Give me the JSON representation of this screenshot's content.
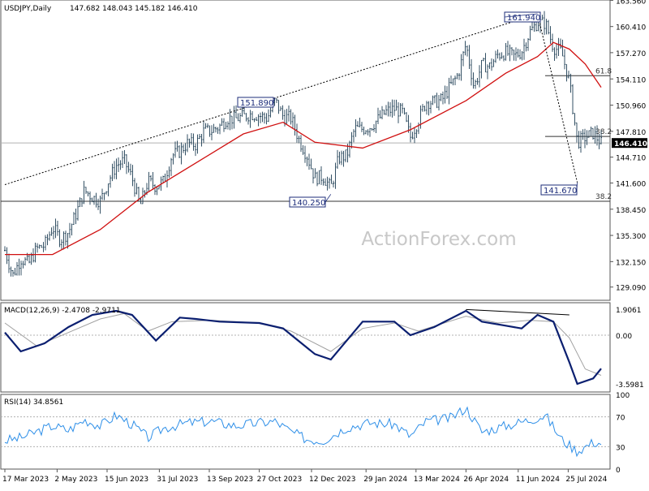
{
  "header": {
    "symbol": "USDJPY,Daily",
    "ohlc": "147.682 148.043 145.182 146.410"
  },
  "watermark": "ActionForex.com",
  "colors": {
    "bars": "#1f3f55",
    "ma": "#d01010",
    "macd": "#0b1f70",
    "macd_signal": "#a0a0a0",
    "rsi": "#2e8fe8",
    "trend": "#000000",
    "grid": "#b0b0b0",
    "price_label_bg": "#ffffff"
  },
  "chart_data": [
    {
      "type": "candlestick",
      "panel": "price",
      "ylim": [
        127.5,
        163.6
      ],
      "y_ticks": [
        "163.560",
        "160.410",
        "157.270",
        "154.110",
        "150.960",
        "147.810",
        "144.710",
        "141.600",
        "138.450",
        "135.300",
        "132.150",
        "129.090"
      ],
      "y_tick_values": [
        163.56,
        160.41,
        157.27,
        154.11,
        150.96,
        147.81,
        144.71,
        141.6,
        138.45,
        135.3,
        132.15,
        129.09
      ],
      "x_ticks": [
        "17 Mar 2023",
        "2 May 2023",
        "15 Jun 2023",
        "31 Jul 2023",
        "13 Sep 2023",
        "27 Oct 2023",
        "12 Dec 2023",
        "29 Jan 2024",
        "13 Mar 2024",
        "26 Apr 2024",
        "11 Jun 2024",
        "25 Jul 2024"
      ],
      "current_price": "146.410",
      "close_path": [
        [
          "17 Mar 2023",
          133.5
        ],
        [
          "24 Mar 2023",
          130.5
        ],
        [
          "31 Mar 2023",
          132.5
        ],
        [
          "7 Apr 2023",
          131.9
        ],
        [
          "14 Apr 2023",
          133.7
        ],
        [
          "21 Apr 2023",
          134.1
        ],
        [
          "28 Apr 2023",
          136.3
        ],
        [
          "5 May 2023",
          134.8
        ],
        [
          "12 May 2023",
          135.7
        ],
        [
          "19 May 2023",
          138.0
        ],
        [
          "26 May 2023",
          140.7
        ],
        [
          "2 Jun 2023",
          139.9
        ],
        [
          "9 Jun 2023",
          139.4
        ],
        [
          "16 Jun 2023",
          141.8
        ],
        [
          "23 Jun 2023",
          143.7
        ],
        [
          "30 Jun 2023",
          144.3
        ],
        [
          "7 Jul 2023",
          142.2
        ],
        [
          "14 Jul 2023",
          138.8
        ],
        [
          "21 Jul 2023",
          141.8
        ],
        [
          "28 Jul 2023",
          141.2
        ],
        [
          "4 Aug 2023",
          141.8
        ],
        [
          "11 Aug 2023",
          144.9
        ],
        [
          "18 Aug 2023",
          145.4
        ],
        [
          "25 Aug 2023",
          146.4
        ],
        [
          "1 Sep 2023",
          146.2
        ],
        [
          "8 Sep 2023",
          147.8
        ],
        [
          "15 Sep 2023",
          147.9
        ],
        [
          "22 Sep 2023",
          148.4
        ],
        [
          "29 Sep 2023",
          149.4
        ],
        [
          "6 Oct 2023",
          149.3
        ],
        [
          "13 Oct 2023",
          149.6
        ],
        [
          "20 Oct 2023",
          149.9
        ],
        [
          "27 Oct 2023",
          149.7
        ],
        [
          "3 Nov 2023",
          149.4
        ],
        [
          "10 Nov 2023",
          151.5
        ],
        [
          "17 Nov 2023",
          149.6
        ],
        [
          "24 Nov 2023",
          149.4
        ],
        [
          "1 Dec 2023",
          146.8
        ],
        [
          "8 Dec 2023",
          144.9
        ],
        [
          "15 Dec 2023",
          142.2
        ],
        [
          "22 Dec 2023",
          142.4
        ],
        [
          "29 Dec 2023",
          141.0
        ],
        [
          "5 Jan 2024",
          144.6
        ],
        [
          "12 Jan 2024",
          144.9
        ],
        [
          "19 Jan 2024",
          148.1
        ],
        [
          "26 Jan 2024",
          148.1
        ],
        [
          "2 Feb 2024",
          148.4
        ],
        [
          "9 Feb 2024",
          149.3
        ],
        [
          "16 Feb 2024",
          150.2
        ],
        [
          "23 Feb 2024",
          150.5
        ],
        [
          "1 Mar 2024",
          150.1
        ],
        [
          "8 Mar 2024",
          147.1
        ],
        [
          "15 Mar 2024",
          149.1
        ],
        [
          "22 Mar 2024",
          151.4
        ],
        [
          "29 Mar 2024",
          151.3
        ],
        [
          "5 Apr 2024",
          151.6
        ],
        [
          "12 Apr 2024",
          153.2
        ],
        [
          "19 Apr 2024",
          154.6
        ],
        [
          "26 Apr 2024",
          158.3
        ],
        [
          "3 May 2024",
          153.1
        ],
        [
          "10 May 2024",
          155.8
        ],
        [
          "17 May 2024",
          155.6
        ],
        [
          "24 May 2024",
          157.0
        ],
        [
          "31 May 2024",
          157.3
        ],
        [
          "7 Jun 2024",
          156.8
        ],
        [
          "14 Jun 2024",
          157.4
        ],
        [
          "21 Jun 2024",
          159.7
        ],
        [
          "28 Jun 2024",
          160.9
        ],
        [
          "5 Jul 2024",
          160.8
        ],
        [
          "12 Jul 2024",
          157.9
        ],
        [
          "19 Jul 2024",
          157.4
        ],
        [
          "26 Jul 2024",
          153.8
        ],
        [
          "2 Aug 2024",
          146.5
        ],
        [
          "9 Aug 2024",
          147.1
        ],
        [
          "16 Aug 2024",
          147.6
        ],
        [
          "23 Aug 2024",
          146.4
        ]
      ],
      "moving_average_path": [
        [
          "17 Mar 2023",
          133.0
        ],
        [
          "28 Apr 2023",
          133.0
        ],
        [
          "9 Jun 2023",
          136.0
        ],
        [
          "21 Jul 2023",
          140.5
        ],
        [
          "1 Sep 2023",
          144.0
        ],
        [
          "13 Oct 2023",
          147.5
        ],
        [
          "17 Nov 2023",
          148.9
        ],
        [
          "15 Dec 2023",
          146.5
        ],
        [
          "26 Jan 2024",
          145.8
        ],
        [
          "8 Mar 2024",
          148.0
        ],
        [
          "26 Apr 2024",
          151.5
        ],
        [
          "31 May 2024",
          154.8
        ],
        [
          "28 Jun 2024",
          156.8
        ],
        [
          "12 Jul 2024",
          158.5
        ],
        [
          "26 Jul 2024",
          157.7
        ],
        [
          "9 Aug 2024",
          155.9
        ],
        [
          "23 Aug 2024",
          153.1
        ]
      ],
      "horizontal_levels": [
        {
          "value": 139.4,
          "label": "38.2"
        },
        {
          "value": 147.2,
          "label": "38.2"
        },
        {
          "value": 154.5,
          "label": "61.8"
        }
      ],
      "annotations": [
        {
          "label": "151.890",
          "date": "10 Nov 2023",
          "price": 151.89
        },
        {
          "label": "140.250",
          "date": "29 Dec 2023",
          "price": 140.25
        },
        {
          "label": "161.940",
          "date": "28 Jun 2024",
          "price": 161.94
        },
        {
          "label": "141.670",
          "date": "2 Aug 2024",
          "price": 141.67
        }
      ]
    },
    {
      "type": "line",
      "panel": "macd",
      "title": "MACD(12,26,9) -2.4708 -2.9711",
      "ylim": [
        -4.2,
        2.4
      ],
      "y_ticks": [
        "1.9061",
        "0.00",
        "-3.5981"
      ],
      "y_tick_values": [
        1.9061,
        0,
        -3.5981
      ],
      "macd_path": [
        [
          "17 Mar 2023",
          0.2
        ],
        [
          "31 Mar 2023",
          -1.2
        ],
        [
          "21 Apr 2023",
          -0.6
        ],
        [
          "12 May 2023",
          0.6
        ],
        [
          "2 Jun 2023",
          1.5
        ],
        [
          "23 Jun 2023",
          1.8
        ],
        [
          "7 Jul 2023",
          1.5
        ],
        [
          "28 Jul 2023",
          -0.4
        ],
        [
          "18 Aug 2023",
          1.3
        ],
        [
          "1 Sep 2023",
          1.2
        ],
        [
          "22 Sep 2023",
          1.0
        ],
        [
          "27 Oct 2023",
          0.9
        ],
        [
          "17 Nov 2023",
          0.5
        ],
        [
          "15 Dec 2023",
          -1.4
        ],
        [
          "29 Dec 2023",
          -1.8
        ],
        [
          "26 Jan 2024",
          1.0
        ],
        [
          "23 Feb 2024",
          1.0
        ],
        [
          "8 Mar 2024",
          0.0
        ],
        [
          "29 Mar 2024",
          0.6
        ],
        [
          "26 Apr 2024",
          1.8
        ],
        [
          "10 May 2024",
          1.0
        ],
        [
          "31 May 2024",
          0.7
        ],
        [
          "14 Jun 2024",
          0.5
        ],
        [
          "28 Jun 2024",
          1.5
        ],
        [
          "12 Jul 2024",
          1.0
        ],
        [
          "26 Jul 2024",
          -2.0
        ],
        [
          "2 Aug 2024",
          -3.6
        ],
        [
          "16 Aug 2024",
          -3.2
        ],
        [
          "23 Aug 2024",
          -2.47
        ]
      ],
      "signal_path": [
        [
          "17 Mar 2023",
          0.9
        ],
        [
          "14 Apr 2023",
          -0.8
        ],
        [
          "12 May 2023",
          0.2
        ],
        [
          "9 Jun 2023",
          1.2
        ],
        [
          "30 Jun 2023",
          1.6
        ],
        [
          "21 Jul 2023",
          0.3
        ],
        [
          "11 Aug 2023",
          1.0
        ],
        [
          "15 Sep 2023",
          1.1
        ],
        [
          "27 Oct 2023",
          0.9
        ],
        [
          "24 Nov 2023",
          0.3
        ],
        [
          "29 Dec 2023",
          -1.2
        ],
        [
          "26 Jan 2024",
          0.5
        ],
        [
          "23 Feb 2024",
          0.9
        ],
        [
          "15 Mar 2024",
          0.3
        ],
        [
          "26 Apr 2024",
          1.4
        ],
        [
          "24 May 2024",
          0.9
        ],
        [
          "21 Jun 2024",
          1.1
        ],
        [
          "12 Jul 2024",
          1.0
        ],
        [
          "26 Jul 2024",
          -0.2
        ],
        [
          "9 Aug 2024",
          -2.5
        ],
        [
          "23 Aug 2024",
          -2.97
        ]
      ],
      "divergence_line": [
        [
          "26 Apr 2024",
          1.9
        ],
        [
          "26 Jul 2024",
          1.5
        ]
      ]
    },
    {
      "type": "line",
      "panel": "rsi",
      "title": "RSI(14) 34.8561",
      "ylim": [
        0,
        100
      ],
      "y_ticks": [
        "100",
        "70",
        "30",
        "0"
      ],
      "y_tick_values": [
        100,
        70,
        30,
        0
      ],
      "path": [
        [
          "17 Mar 2023",
          38
        ],
        [
          "31 Mar 2023",
          42
        ],
        [
          "14 Apr 2023",
          50
        ],
        [
          "28 Apr 2023",
          58
        ],
        [
          "12 May 2023",
          52
        ],
        [
          "26 May 2023",
          66
        ],
        [
          "9 Jun 2023",
          58
        ],
        [
          "23 Jun 2023",
          72
        ],
        [
          "7 Jul 2023",
          60
        ],
        [
          "21 Jul 2023",
          42
        ],
        [
          "4 Aug 2023",
          55
        ],
        [
          "25 Aug 2023",
          62
        ],
        [
          "15 Sep 2023",
          64
        ],
        [
          "6 Oct 2023",
          58
        ],
        [
          "27 Oct 2023",
          62
        ],
        [
          "10 Nov 2023",
          64
        ],
        [
          "24 Nov 2023",
          50
        ],
        [
          "8 Dec 2023",
          40
        ],
        [
          "22 Dec 2023",
          38
        ],
        [
          "12 Jan 2024",
          56
        ],
        [
          "2 Feb 2024",
          62
        ],
        [
          "23 Feb 2024",
          60
        ],
        [
          "8 Mar 2024",
          44
        ],
        [
          "22 Mar 2024",
          64
        ],
        [
          "12 Apr 2024",
          68
        ],
        [
          "26 Apr 2024",
          82
        ],
        [
          "10 May 2024",
          50
        ],
        [
          "31 May 2024",
          58
        ],
        [
          "21 Jun 2024",
          66
        ],
        [
          "5 Jul 2024",
          72
        ],
        [
          "19 Jul 2024",
          40
        ],
        [
          "2 Aug 2024",
          24
        ],
        [
          "16 Aug 2024",
          36
        ],
        [
          "23 Aug 2024",
          34.9
        ]
      ]
    }
  ]
}
